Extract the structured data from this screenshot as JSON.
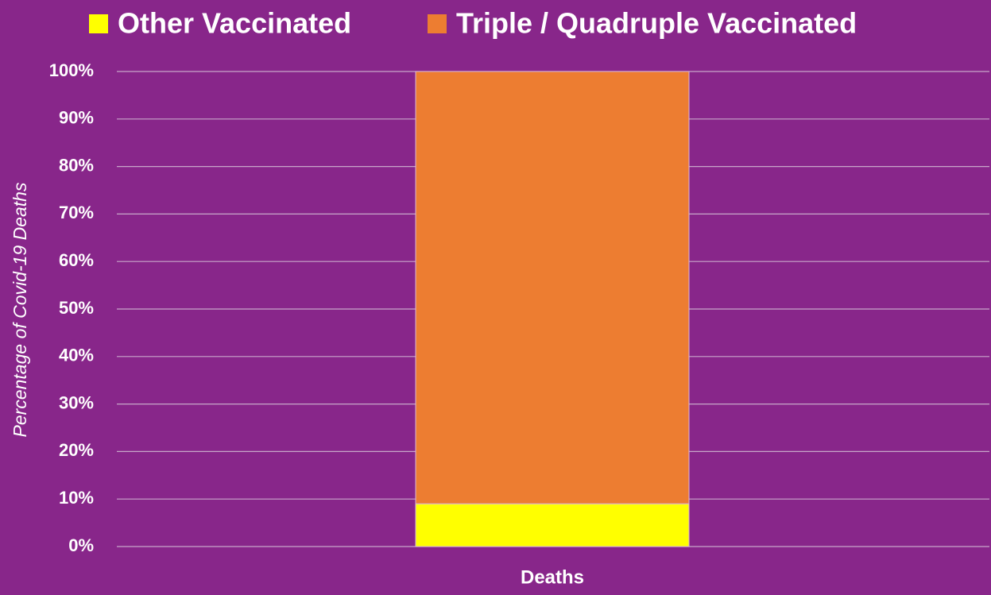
{
  "chart_data": {
    "type": "stacked_bar",
    "categories": [
      "Deaths"
    ],
    "y_axis_label": "Percentage of Covid-19 Deaths",
    "series": [
      {
        "name": "Other Vaccinated",
        "color": "#ffff00",
        "values": [
          9
        ]
      },
      {
        "name": "Triple / Quadruple Vaccinated",
        "color": "#ed7d31",
        "values": [
          91
        ]
      }
    ],
    "ylim": [
      0,
      100
    ],
    "yticks": [
      {
        "value": 0,
        "label": "0%"
      },
      {
        "value": 10,
        "label": "10%"
      },
      {
        "value": 20,
        "label": "20%"
      },
      {
        "value": 30,
        "label": "30%"
      },
      {
        "value": 40,
        "label": "40%"
      },
      {
        "value": 50,
        "label": "50%"
      },
      {
        "value": 60,
        "label": "60%"
      },
      {
        "value": 70,
        "label": "70%"
      },
      {
        "value": 80,
        "label": "80%"
      },
      {
        "value": 90,
        "label": "90%"
      },
      {
        "value": 100,
        "label": "100%"
      }
    ],
    "grid": true,
    "legend": "top"
  }
}
